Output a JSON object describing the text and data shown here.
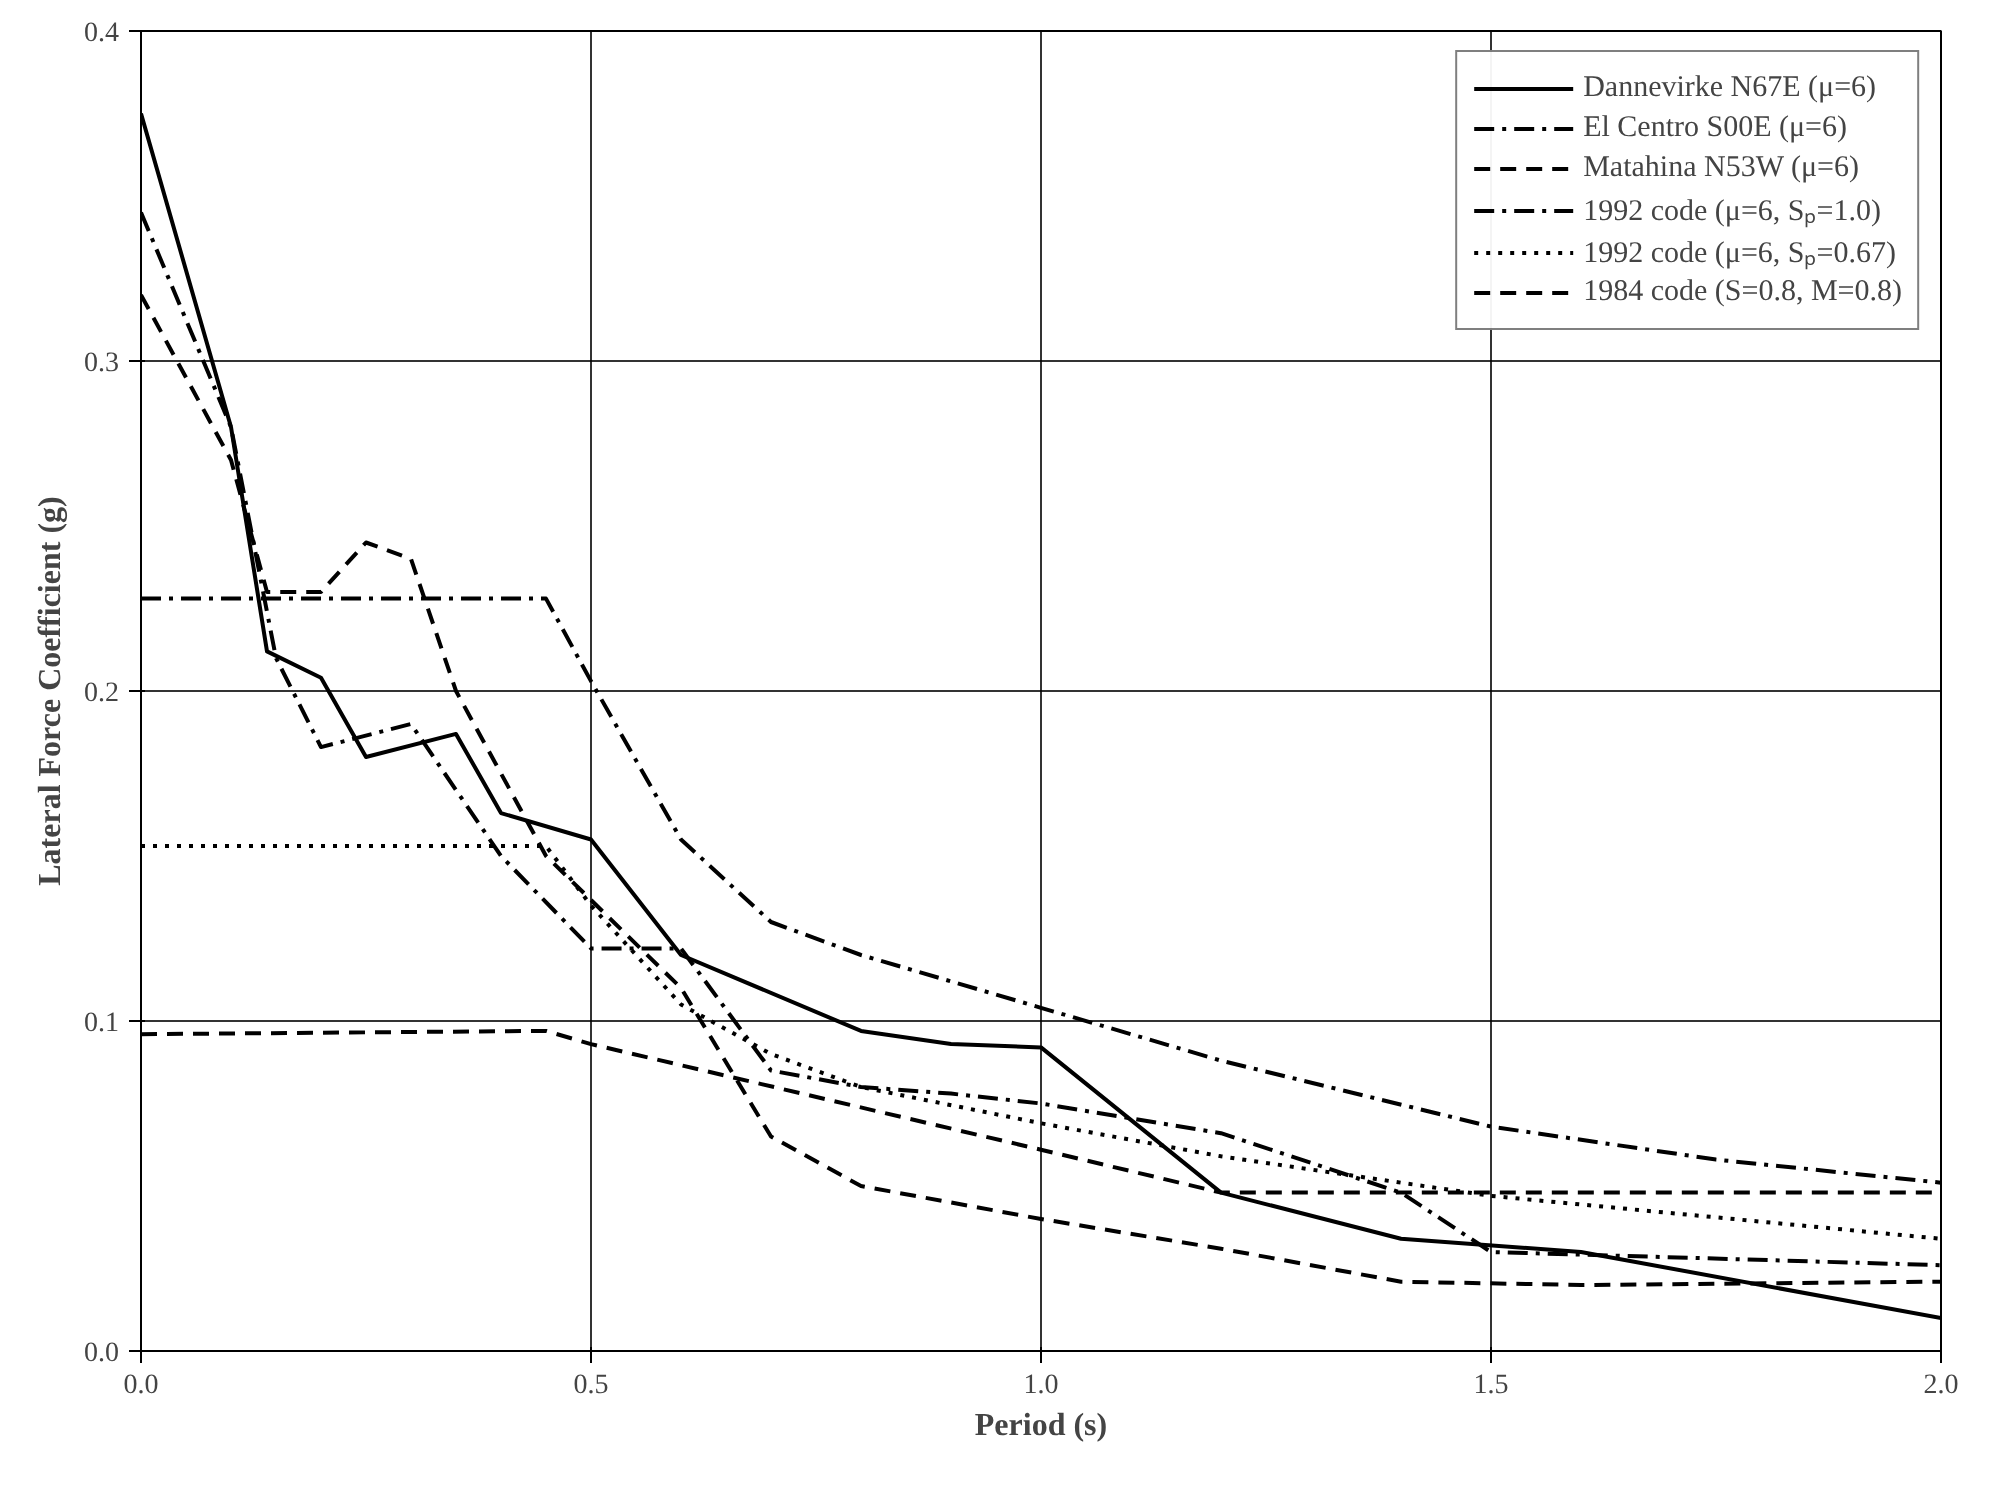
{
  "chart_data": {
    "type": "line",
    "xlabel": "Period (s)",
    "ylabel": "Lateral Force Coefficient (g)",
    "xlim": [
      0,
      2
    ],
    "ylim": [
      0,
      0.4
    ],
    "xticks": [
      {
        "value": 0,
        "label": "0.0"
      },
      {
        "value": 0.5,
        "label": "0.5"
      },
      {
        "value": 1,
        "label": "1.0"
      },
      {
        "value": 1.5,
        "label": "1.5"
      },
      {
        "value": 2,
        "label": "2.0"
      }
    ],
    "yticks": [
      {
        "value": 0,
        "label": "0.0"
      },
      {
        "value": 0.1,
        "label": "0.1"
      },
      {
        "value": 0.2,
        "label": "0.2"
      },
      {
        "value": 0.3,
        "label": "0.3"
      },
      {
        "value": 0.4,
        "label": "0.4"
      }
    ],
    "grid": true,
    "legend": "top right",
    "marker": "none",
    "series": [
      {
        "name": "Dannevirke N67E (μ=6)",
        "color": "#000000",
        "line_style": "solid",
        "x": [
          0,
          0.1,
          0.14,
          0.2,
          0.25,
          0.35,
          0.4,
          0.5,
          0.6,
          0.8,
          0.9,
          1.0,
          1.2,
          1.4,
          1.6,
          2.0
        ],
        "values": [
          0.375,
          0.28,
          0.212,
          0.204,
          0.18,
          0.187,
          0.163,
          0.155,
          0.12,
          0.097,
          0.093,
          0.092,
          0.048,
          0.034,
          0.03,
          0.01
        ]
      },
      {
        "name": "El Centro S00E (μ=6)",
        "color": "#000000",
        "line_style": "dashdot",
        "x": [
          0,
          0.1,
          0.15,
          0.2,
          0.3,
          0.4,
          0.5,
          0.6,
          0.7,
          0.8,
          0.9,
          1.0,
          1.2,
          1.4,
          1.5,
          2.0
        ],
        "values": [
          0.345,
          0.28,
          0.21,
          0.183,
          0.19,
          0.15,
          0.122,
          0.122,
          0.085,
          0.08,
          0.078,
          0.075,
          0.066,
          0.048,
          0.03,
          0.026
        ]
      },
      {
        "name": "Matahina N53W (μ=6)",
        "color": "#000000",
        "line_style": "dashed",
        "x": [
          0,
          0.1,
          0.14,
          0.2,
          0.25,
          0.3,
          0.35,
          0.45,
          0.6,
          0.7,
          0.8,
          1.0,
          1.2,
          1.4,
          1.6,
          2.0
        ],
        "values": [
          0.32,
          0.27,
          0.23,
          0.23,
          0.245,
          0.24,
          0.2,
          0.15,
          0.11,
          0.065,
          0.05,
          0.04,
          0.031,
          0.021,
          0.02,
          0.021
        ]
      },
      {
        "name": "1992 code (μ=6, Sₚ=1.0)",
        "color": "#000000",
        "line_style": "dashdot",
        "x": [
          0,
          0.45,
          0.5,
          0.6,
          0.7,
          0.8,
          1.0,
          1.2,
          1.5,
          1.75,
          2.0
        ],
        "values": [
          0.228,
          0.228,
          0.203,
          0.155,
          0.13,
          0.12,
          0.104,
          0.088,
          0.068,
          0.058,
          0.051
        ]
      },
      {
        "name": "1992 code (μ=6, Sₚ=0.67)",
        "color": "#000000",
        "line_style": "dotted",
        "x": [
          0,
          0.45,
          0.5,
          0.6,
          0.7,
          0.8,
          1.0,
          1.2,
          1.5,
          2.0
        ],
        "values": [
          0.153,
          0.153,
          0.135,
          0.105,
          0.09,
          0.08,
          0.069,
          0.059,
          0.047,
          0.034
        ]
      },
      {
        "name": "1984 code (S=0.8, M=0.8)",
        "color": "#000000",
        "line_style": "dashed",
        "x": [
          0,
          0.45,
          0.5,
          1.0,
          1.2,
          2.0
        ],
        "values": [
          0.096,
          0.097,
          0.093,
          0.061,
          0.048,
          0.048
        ]
      }
    ]
  }
}
